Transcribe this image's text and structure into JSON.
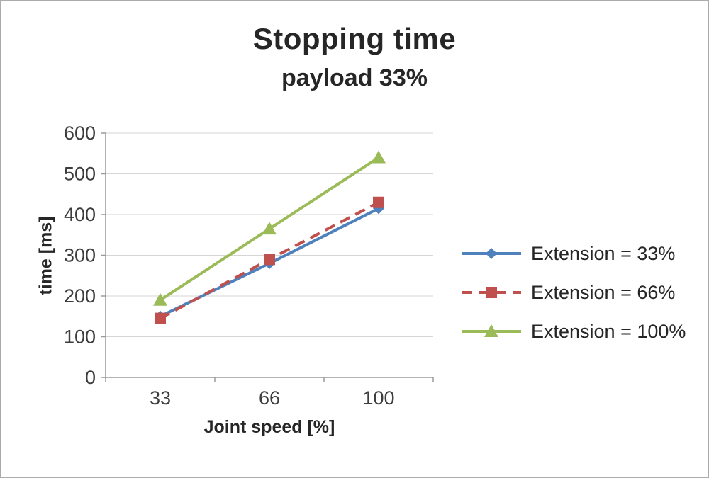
{
  "title": "Stopping time",
  "subtitle": "payload 33%",
  "chart_data": {
    "type": "line",
    "title": "Stopping time",
    "subtitle": "payload 33%",
    "x_labels": [
      "33",
      "66",
      "100"
    ],
    "xlabel": "Joint speed [%]",
    "ylabel": "time [ms]",
    "ylim": [
      0,
      600
    ],
    "ytick_step": 100,
    "grid": true,
    "legend_position": "right",
    "series": [
      {
        "name": "Extension = 33%",
        "values": [
          150,
          280,
          415
        ],
        "color": "#4f81bd",
        "line": "solid",
        "marker": "diamond"
      },
      {
        "name": "Extension = 66%",
        "values": [
          145,
          290,
          430
        ],
        "color": "#c0504d",
        "line": "dashed",
        "marker": "square"
      },
      {
        "name": "Extension = 100%",
        "values": [
          190,
          365,
          540
        ],
        "color": "#9bbb59",
        "line": "solid",
        "marker": "triangle"
      }
    ]
  },
  "colors": {
    "grid": "#d6d6d6",
    "axis": "#9a9a9a",
    "tick_text": "#3d3d3d",
    "title_text": "#262626"
  }
}
